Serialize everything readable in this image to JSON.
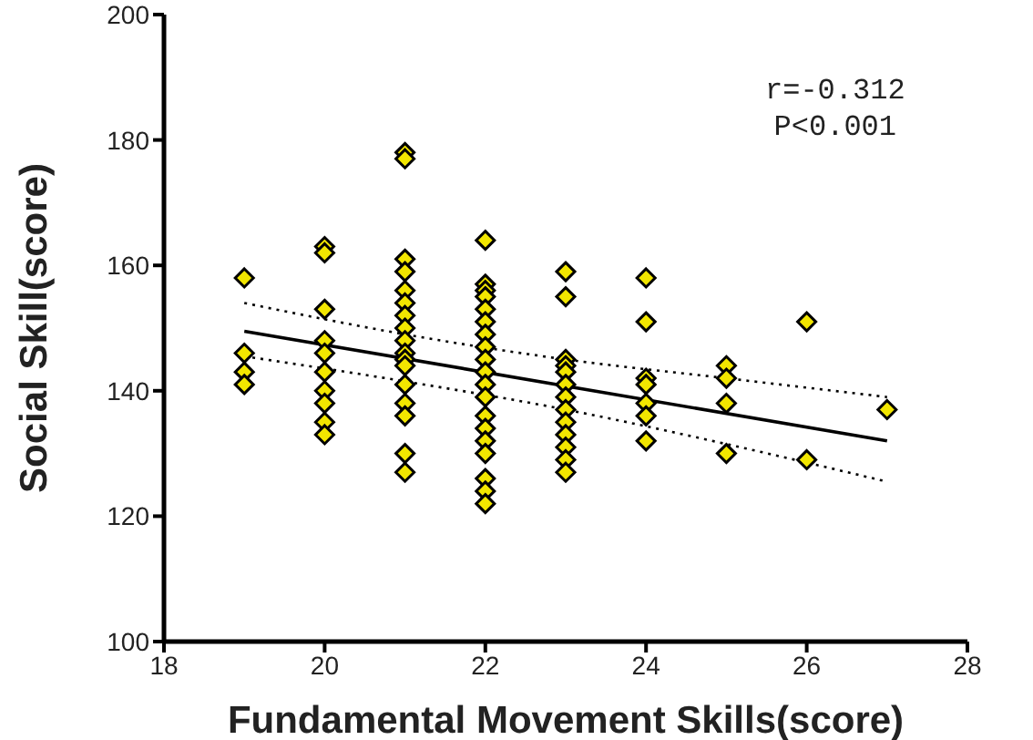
{
  "chart_data": {
    "type": "scatter",
    "xlabel": "Fundamental Movement Skills(score)",
    "ylabel": "Social Skill(score)",
    "xlim": [
      18,
      28
    ],
    "xticks": [
      18,
      20,
      22,
      24,
      26,
      28
    ],
    "ylim": [
      100,
      200
    ],
    "yticks": [
      100,
      120,
      140,
      160,
      180,
      200
    ],
    "grid": false,
    "legend": false,
    "marker": "diamond",
    "annotations": [
      "r=-0.312",
      "P<0.001"
    ],
    "series": [
      {
        "color": "#f2e600",
        "x": [
          19,
          19,
          19,
          19,
          20,
          20,
          20,
          20,
          20,
          20,
          20,
          20,
          20,
          20,
          21,
          21,
          21,
          21,
          21,
          21,
          21,
          21,
          21,
          21,
          21,
          21,
          21,
          21,
          21,
          21,
          21,
          22,
          22,
          22,
          22,
          22,
          22,
          22,
          22,
          22,
          22,
          22,
          22,
          22,
          22,
          22,
          22,
          22,
          22,
          22,
          23,
          23,
          23,
          23,
          23,
          23,
          23,
          23,
          23,
          23,
          23,
          23,
          23,
          24,
          24,
          24,
          24,
          24,
          24,
          24,
          25,
          25,
          25,
          25,
          26,
          26,
          27
        ],
        "values": [
          158,
          146,
          143,
          141,
          163,
          162,
          153,
          148,
          146,
          143,
          140,
          138,
          135,
          133,
          178,
          177,
          161,
          159,
          156,
          154,
          152,
          150,
          148,
          146,
          145,
          144,
          141,
          138,
          136,
          130,
          127,
          164,
          157,
          156,
          155,
          153,
          151,
          149,
          147,
          145,
          143,
          141,
          139,
          136,
          134,
          132,
          130,
          126,
          124,
          122,
          159,
          155,
          145,
          144,
          143,
          141,
          139,
          137,
          135,
          133,
          131,
          129,
          127,
          158,
          151,
          142,
          141,
          138,
          136,
          132,
          144,
          142,
          138,
          130,
          151,
          129,
          137
        ]
      },
      {
        "type": "line",
        "color": "#000000",
        "marker": "none",
        "line_style": "solid",
        "x": [
          19,
          27
        ],
        "values": [
          149.5,
          132
        ]
      },
      {
        "type": "line",
        "color": "#000000",
        "marker": "none",
        "line_style": "dotted",
        "x": [
          19,
          21,
          23,
          25,
          27
        ],
        "values": [
          154,
          149,
          145,
          142,
          139
        ]
      },
      {
        "type": "line",
        "color": "#000000",
        "marker": "none",
        "line_style": "dotted",
        "x": [
          19,
          21,
          23,
          25,
          27
        ],
        "values": [
          145.5,
          141.5,
          137,
          131.5,
          125.5
        ]
      }
    ]
  }
}
